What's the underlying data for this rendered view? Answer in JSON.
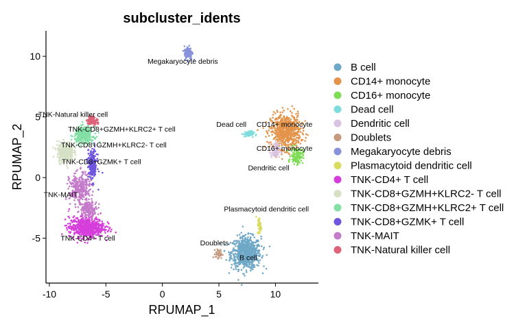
{
  "chart_data": {
    "type": "scatter",
    "title": "subcluster_idents",
    "xlabel": "RPUMAP_1",
    "ylabel": "RPUMAP_2",
    "xlim": [
      -10.3,
      13.8
    ],
    "ylim": [
      -8.7,
      12.1
    ],
    "xticks": [
      -10,
      -5,
      0,
      5,
      10
    ],
    "yticks": [
      -5,
      0,
      5,
      10
    ],
    "xtick_labels": [
      "-10",
      "-5",
      "0",
      "5",
      "10"
    ],
    "ytick_labels": [
      "-5",
      "0",
      "5",
      "10"
    ],
    "grid": false,
    "legend_position": "right",
    "series": [
      {
        "name": "B cell",
        "color": "#6fa8c7",
        "clusters": [
          {
            "cx": 7.4,
            "cy": -6.2,
            "sx": 1.1,
            "sy": 1.1,
            "n": 700
          }
        ],
        "label": {
          "text": "B cell",
          "x": 7.6,
          "y": -6.8
        }
      },
      {
        "name": "CD14+ monocyte",
        "color": "#e3944a",
        "clusters": [
          {
            "cx": 10.9,
            "cy": 3.8,
            "sx": 1.1,
            "sy": 1.2,
            "n": 650
          }
        ],
        "label": {
          "text": "CD14+ monocyte",
          "x": 10.8,
          "y": 4.2
        }
      },
      {
        "name": "CD16+ monocyte",
        "color": "#7fdc57",
        "clusters": [
          {
            "cx": 11.9,
            "cy": 1.8,
            "sx": 0.45,
            "sy": 0.55,
            "n": 130
          }
        ],
        "label": {
          "text": "CD16+ monocyte",
          "x": 10.8,
          "y": 2.2
        }
      },
      {
        "name": "Dead cell",
        "color": "#7fdcdc",
        "clusters": [
          {
            "cx": 7.6,
            "cy": 3.6,
            "sx": 0.4,
            "sy": 0.2,
            "n": 60
          }
        ],
        "label": {
          "text": "Dead cell",
          "x": 6.1,
          "y": 4.2
        }
      },
      {
        "name": "Dendritic cell",
        "color": "#d9c2e0",
        "clusters": [
          {
            "cx": 10.0,
            "cy": 2.2,
            "sx": 0.35,
            "sy": 0.6,
            "n": 70
          }
        ],
        "label": {
          "text": "Dendritic cell",
          "x": 9.4,
          "y": 0.6
        }
      },
      {
        "name": "Doublets",
        "color": "#c39a80",
        "clusters": [
          {
            "cx": 5.0,
            "cy": -6.3,
            "sx": 0.25,
            "sy": 0.3,
            "n": 40
          }
        ],
        "label": {
          "text": "Doublets",
          "x": 4.6,
          "y": -5.6
        }
      },
      {
        "name": "Megakaryocyte debris",
        "color": "#8892da",
        "clusters": [
          {
            "cx": 2.3,
            "cy": 10.3,
            "sx": 0.3,
            "sy": 0.45,
            "n": 140
          }
        ],
        "label": {
          "text": "Megakaryocyte debris",
          "x": 1.8,
          "y": 9.4
        }
      },
      {
        "name": "Plasmacytoid dendritic cell",
        "color": "#d8dc5e",
        "clusters": [
          {
            "cx": 8.6,
            "cy": -4.0,
            "sx": 0.15,
            "sy": 0.6,
            "n": 45
          }
        ],
        "label": {
          "text": "Plasmacytoid dendritic cell",
          "x": 9.2,
          "y": -2.8
        }
      },
      {
        "name": "TNK-CD4+ T cell",
        "color": "#d63edb",
        "clusters": [
          {
            "cx": -6.7,
            "cy": -4.1,
            "sx": 1.3,
            "sy": 0.7,
            "n": 650
          }
        ],
        "label": {
          "text": "TNK-CD4+ T cell",
          "x": -6.6,
          "y": -5.2
        }
      },
      {
        "name": "TNK-CD8+GZMH+KLRC2- T cell",
        "color": "#d5e0c5",
        "clusters": [
          {
            "cx": -8.6,
            "cy": 2.1,
            "sx": 0.6,
            "sy": 0.7,
            "n": 300
          }
        ],
        "label": {
          "text": "TNK-CD8+GZMH+KLRC2- T cell",
          "x": -4.3,
          "y": 2.5
        }
      },
      {
        "name": "TNK-CD8+GZMH+KLRC2+ T cell",
        "color": "#83dfa6",
        "clusters": [
          {
            "cx": -6.9,
            "cy": 3.5,
            "sx": 0.7,
            "sy": 0.55,
            "n": 300
          }
        ],
        "label": {
          "text": "TNK-CD8+GZMH+KLRC2+ T cell",
          "x": -3.6,
          "y": 3.8
        }
      },
      {
        "name": "TNK-CD8+GZMK+ T cell",
        "color": "#7055de",
        "clusters": [
          {
            "cx": -6.2,
            "cy": 1.0,
            "sx": 0.35,
            "sy": 1.1,
            "n": 220
          }
        ],
        "label": {
          "text": "TNK-CD8+GZMK+ T cell",
          "x": -5.4,
          "y": 1.1
        }
      },
      {
        "name": "TNK-MAIT",
        "color": "#c47bc9",
        "clusters": [
          {
            "cx": -7.3,
            "cy": -1.0,
            "sx": 0.75,
            "sy": 1.1,
            "n": 320
          },
          {
            "cx": -6.5,
            "cy": -2.6,
            "sx": 0.6,
            "sy": 0.5,
            "n": 150
          }
        ],
        "label": {
          "text": "TNK-MAIT",
          "x": -9.0,
          "y": -1.6
        }
      },
      {
        "name": "TNK-Natural killer cell",
        "color": "#dd6378",
        "clusters": [
          {
            "cx": -6.2,
            "cy": 4.7,
            "sx": 0.4,
            "sy": 0.3,
            "n": 100
          }
        ],
        "label": {
          "text": "TNK-Natural killer cell",
          "x": -7.9,
          "y": 5.0
        }
      }
    ]
  }
}
